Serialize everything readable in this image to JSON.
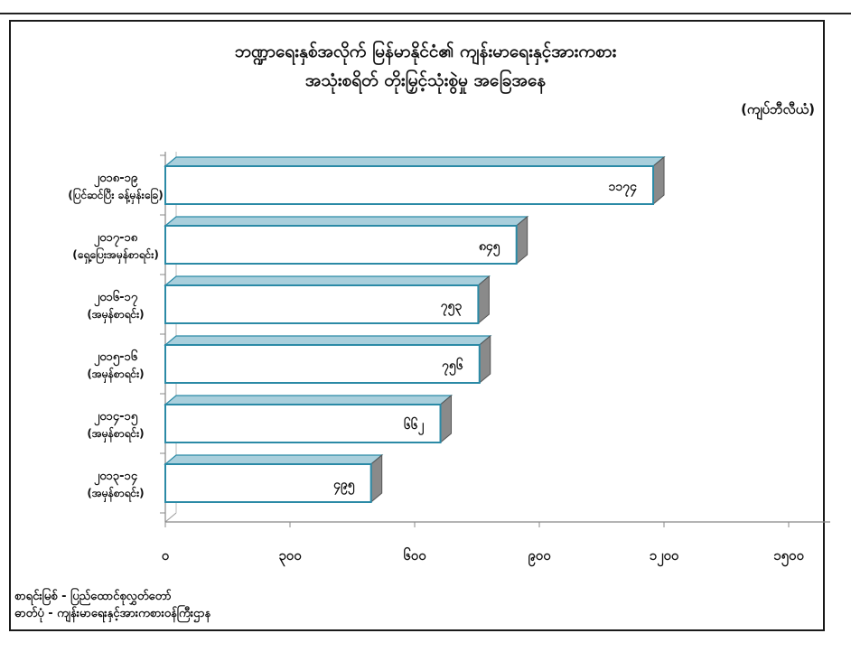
{
  "title_line1": "ဘဏ္ဍာရေးနှစ်အလိုက် မြန်မာနိုင်ငံ၏ ကျန်းမာရေးနှင့်အားကစား",
  "title_line2": "အသုံးစရိတ် တိုးမြှင့်သုံးစွဲမှု အခြေအနေ",
  "unit_label": "(ကျပ်ဘီလီယံ)",
  "source_lines": [
    "စာရင်းမြစ် - ပြည်ထောင်စုလွှတ်တော်",
    "ဓာတ်ပုံ - ကျန်းမာရေးနှင့်အားကစားဝန်ကြီးဌာန"
  ],
  "chart_data": {
    "type": "bar",
    "orientation": "horizontal",
    "style": "3d",
    "categories": [
      [
        "၂၀၁၈-၁၉",
        "(ပြင်ဆင်ပြီး ခန့်မှန်းခြေ)"
      ],
      [
        "၂၀၁၇-၁၈",
        "(ရှေ့ပြေးအမှန်စာရင်း)"
      ],
      [
        "၂၀၁၆-၁၇",
        "(အမှန်စာရင်း)"
      ],
      [
        "၂၀၁၅-၁၆",
        "(အမှန်စာရင်း)"
      ],
      [
        "၂၀၁၄-၁၅",
        "(အမှန်စာရင်း)"
      ],
      [
        "၂၀၁၃-၁၄",
        "(အမှန်စာရင်း)"
      ]
    ],
    "values": [
      1174,
      845,
      753,
      756,
      662,
      495
    ],
    "value_labels": [
      "၁၁၇၄",
      "၈၄၅",
      "၇၅၃",
      "၇၅၆",
      "၆၆၂",
      "၄၉၅"
    ],
    "xlim": [
      0,
      1600
    ],
    "xticks": [
      0,
      300,
      600,
      900,
      1200,
      1500
    ],
    "xtick_labels": [
      "၀",
      "၃၀၀",
      "၆၀၀",
      "၉၀၀",
      "၁၂၀၀",
      "၁၅၀၀"
    ],
    "bar_face_color": "#ffffff",
    "bar_edge_color": "#2b8aa6",
    "bar_top_color": "#a9cfdc",
    "bar_side_color": "#8a8a8a",
    "grid": false
  }
}
